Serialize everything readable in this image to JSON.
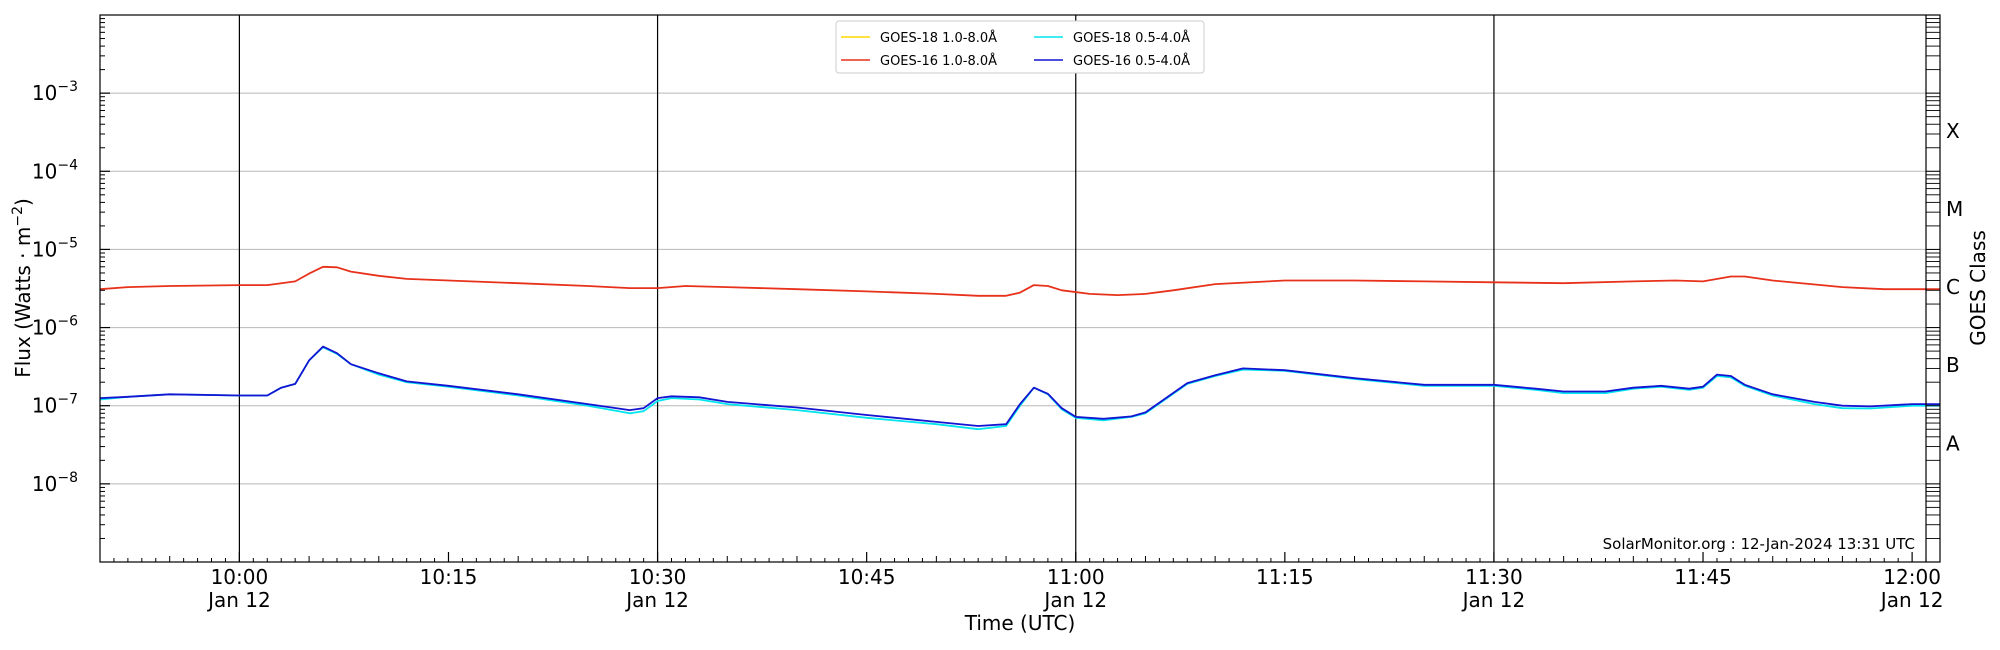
{
  "chart_data": {
    "type": "line",
    "title": "",
    "xlabel": "Time (UTC)",
    "ylabel": "Flux (Watts · m",
    "ylabel_sup": "−2",
    "ylabel_close": ")",
    "y2label": "GOES Class",
    "yscale": "log",
    "xlim": [
      "09:50",
      "12:02"
    ],
    "ylim": [
      1e-09,
      0.01
    ],
    "grid": "horizontal at y decades",
    "legend_position": "top-center",
    "credit": "SolarMonitor.org : 12-Jan-2024 13:31 UTC",
    "x_ticks": [
      {
        "t": "10:00",
        "label": "10:00",
        "sublabel": "Jan 12"
      },
      {
        "t": "10:15",
        "label": "10:15",
        "sublabel": ""
      },
      {
        "t": "10:30",
        "label": "10:30",
        "sublabel": "Jan 12"
      },
      {
        "t": "10:45",
        "label": "10:45",
        "sublabel": ""
      },
      {
        "t": "11:00",
        "label": "11:00",
        "sublabel": "Jan 12"
      },
      {
        "t": "11:15",
        "label": "11:15",
        "sublabel": ""
      },
      {
        "t": "11:30",
        "label": "11:30",
        "sublabel": "Jan 12"
      },
      {
        "t": "11:45",
        "label": "11:45",
        "sublabel": ""
      },
      {
        "t": "12:00",
        "label": "12:00",
        "sublabel": "Jan 12"
      }
    ],
    "vertical_lines": [
      "10:00",
      "10:30",
      "11:00",
      "11:30"
    ],
    "y_ticks": [
      {
        "value": 1e-08,
        "base": "10",
        "exp": "−8"
      },
      {
        "value": 1e-07,
        "base": "10",
        "exp": "−7"
      },
      {
        "value": 1e-06,
        "base": "10",
        "exp": "−6"
      },
      {
        "value": 1e-05,
        "base": "10",
        "exp": "−5"
      },
      {
        "value": 0.0001,
        "base": "10",
        "exp": "−4"
      },
      {
        "value": 0.001,
        "base": "10",
        "exp": "−3"
      }
    ],
    "goes_classes": [
      {
        "label": "A",
        "value": 1e-08
      },
      {
        "label": "B",
        "value": 1e-07
      },
      {
        "label": "C",
        "value": 1e-06
      },
      {
        "label": "M",
        "value": 1e-05
      },
      {
        "label": "X",
        "value": 0.0001
      }
    ],
    "series": [
      {
        "name": "GOES-18 1.0-8.0Å",
        "color": "#ffd700",
        "points": []
      },
      {
        "name": "GOES-16 1.0-8.0Å",
        "color": "#e8311a",
        "points": [
          [
            "09:50",
            3.1e-06
          ],
          [
            "09:52",
            3.3e-06
          ],
          [
            "09:55",
            3.4e-06
          ],
          [
            "10:00",
            3.5e-06
          ],
          [
            "10:02",
            3.5e-06
          ],
          [
            "10:04",
            3.9e-06
          ],
          [
            "10:05",
            4.9e-06
          ],
          [
            "10:06",
            6e-06
          ],
          [
            "10:07",
            5.9e-06
          ],
          [
            "10:08",
            5.2e-06
          ],
          [
            "10:10",
            4.6e-06
          ],
          [
            "10:12",
            4.2e-06
          ],
          [
            "10:15",
            4e-06
          ],
          [
            "10:20",
            3.7e-06
          ],
          [
            "10:25",
            3.4e-06
          ],
          [
            "10:28",
            3.2e-06
          ],
          [
            "10:30",
            3.2e-06
          ],
          [
            "10:32",
            3.4e-06
          ],
          [
            "10:35",
            3.3e-06
          ],
          [
            "10:40",
            3.1e-06
          ],
          [
            "10:45",
            2.9e-06
          ],
          [
            "10:50",
            2.7e-06
          ],
          [
            "10:53",
            2.55e-06
          ],
          [
            "10:55",
            2.55e-06
          ],
          [
            "10:56",
            2.8e-06
          ],
          [
            "10:57",
            3.5e-06
          ],
          [
            "10:58",
            3.4e-06
          ],
          [
            "10:59",
            3e-06
          ],
          [
            "11:01",
            2.7e-06
          ],
          [
            "11:03",
            2.6e-06
          ],
          [
            "11:05",
            2.7e-06
          ],
          [
            "11:07",
            3e-06
          ],
          [
            "11:10",
            3.6e-06
          ],
          [
            "11:15",
            4e-06
          ],
          [
            "11:20",
            4e-06
          ],
          [
            "11:25",
            3.9e-06
          ],
          [
            "11:30",
            3.8e-06
          ],
          [
            "11:35",
            3.7e-06
          ],
          [
            "11:40",
            3.9e-06
          ],
          [
            "11:43",
            4e-06
          ],
          [
            "11:45",
            3.9e-06
          ],
          [
            "11:47",
            4.5e-06
          ],
          [
            "11:48",
            4.5e-06
          ],
          [
            "11:50",
            4e-06
          ],
          [
            "11:55",
            3.3e-06
          ],
          [
            "11:58",
            3.1e-06
          ],
          [
            "12:00",
            3.1e-06
          ],
          [
            "12:02",
            3.1e-06
          ]
        ]
      },
      {
        "name": "GOES-18 0.5-4.0Å",
        "color": "#00e5ee",
        "points": [
          [
            "09:50",
            1.2e-07
          ],
          [
            "09:52",
            1.3e-07
          ],
          [
            "09:55",
            1.4e-07
          ],
          [
            "10:00",
            1.35e-07
          ],
          [
            "10:02",
            1.35e-07
          ],
          [
            "10:03",
            1.7e-07
          ],
          [
            "10:04",
            1.9e-07
          ],
          [
            "10:05",
            3.8e-07
          ],
          [
            "10:06",
            5.6e-07
          ],
          [
            "10:07",
            4.6e-07
          ],
          [
            "10:08",
            3.4e-07
          ],
          [
            "10:10",
            2.5e-07
          ],
          [
            "10:12",
            2e-07
          ],
          [
            "10:15",
            1.75e-07
          ],
          [
            "10:20",
            1.35e-07
          ],
          [
            "10:25",
            1e-07
          ],
          [
            "10:28",
            8e-08
          ],
          [
            "10:29",
            8.5e-08
          ],
          [
            "10:30",
            1.15e-07
          ],
          [
            "10:31",
            1.25e-07
          ],
          [
            "10:33",
            1.2e-07
          ],
          [
            "10:35",
            1.05e-07
          ],
          [
            "10:40",
            8.8e-08
          ],
          [
            "10:45",
            7e-08
          ],
          [
            "10:50",
            5.8e-08
          ],
          [
            "10:53",
            5e-08
          ],
          [
            "10:55",
            5.5e-08
          ],
          [
            "10:56",
            1e-07
          ],
          [
            "10:57",
            1.7e-07
          ],
          [
            "10:58",
            1.4e-07
          ],
          [
            "10:59",
            9e-08
          ],
          [
            "11:00",
            7e-08
          ],
          [
            "11:02",
            6.5e-08
          ],
          [
            "11:04",
            7.2e-08
          ],
          [
            "11:05",
            8e-08
          ],
          [
            "11:08",
            1.9e-07
          ],
          [
            "11:10",
            2.4e-07
          ],
          [
            "11:12",
            2.9e-07
          ],
          [
            "11:15",
            2.8e-07
          ],
          [
            "11:20",
            2.2e-07
          ],
          [
            "11:25",
            1.8e-07
          ],
          [
            "11:30",
            1.8e-07
          ],
          [
            "11:33",
            1.6e-07
          ],
          [
            "11:35",
            1.45e-07
          ],
          [
            "11:38",
            1.45e-07
          ],
          [
            "11:40",
            1.65e-07
          ],
          [
            "11:42",
            1.75e-07
          ],
          [
            "11:44",
            1.6e-07
          ],
          [
            "11:45",
            1.7e-07
          ],
          [
            "11:46",
            2.4e-07
          ],
          [
            "11:47",
            2.3e-07
          ],
          [
            "11:48",
            1.8e-07
          ],
          [
            "11:50",
            1.35e-07
          ],
          [
            "11:53",
            1.05e-07
          ],
          [
            "11:55",
            9.3e-08
          ],
          [
            "11:57",
            9.2e-08
          ],
          [
            "12:00",
            1e-07
          ],
          [
            "12:02",
            1e-07
          ]
        ]
      },
      {
        "name": "GOES-16 0.5-4.0Å",
        "color": "#1414d2",
        "points": [
          [
            "09:50",
            1.25e-07
          ],
          [
            "09:52",
            1.3e-07
          ],
          [
            "09:55",
            1.4e-07
          ],
          [
            "10:00",
            1.35e-07
          ],
          [
            "10:02",
            1.35e-07
          ],
          [
            "10:03",
            1.7e-07
          ],
          [
            "10:04",
            1.9e-07
          ],
          [
            "10:05",
            3.8e-07
          ],
          [
            "10:06",
            5.7e-07
          ],
          [
            "10:07",
            4.7e-07
          ],
          [
            "10:08",
            3.4e-07
          ],
          [
            "10:10",
            2.6e-07
          ],
          [
            "10:12",
            2.05e-07
          ],
          [
            "10:15",
            1.8e-07
          ],
          [
            "10:20",
            1.4e-07
          ],
          [
            "10:25",
            1.05e-07
          ],
          [
            "10:28",
            8.8e-08
          ],
          [
            "10:29",
            9.3e-08
          ],
          [
            "10:30",
            1.25e-07
          ],
          [
            "10:31",
            1.32e-07
          ],
          [
            "10:33",
            1.28e-07
          ],
          [
            "10:35",
            1.12e-07
          ],
          [
            "10:40",
            9.5e-08
          ],
          [
            "10:45",
            7.6e-08
          ],
          [
            "10:50",
            6.2e-08
          ],
          [
            "10:53",
            5.5e-08
          ],
          [
            "10:55",
            5.8e-08
          ],
          [
            "10:56",
            1.05e-07
          ],
          [
            "10:57",
            1.7e-07
          ],
          [
            "10:58",
            1.42e-07
          ],
          [
            "10:59",
            9.3e-08
          ],
          [
            "11:00",
            7.2e-08
          ],
          [
            "11:02",
            6.8e-08
          ],
          [
            "11:04",
            7.3e-08
          ],
          [
            "11:05",
            8.2e-08
          ],
          [
            "11:08",
            1.95e-07
          ],
          [
            "11:10",
            2.45e-07
          ],
          [
            "11:12",
            3e-07
          ],
          [
            "11:15",
            2.85e-07
          ],
          [
            "11:20",
            2.25e-07
          ],
          [
            "11:25",
            1.85e-07
          ],
          [
            "11:30",
            1.85e-07
          ],
          [
            "11:33",
            1.65e-07
          ],
          [
            "11:35",
            1.52e-07
          ],
          [
            "11:38",
            1.52e-07
          ],
          [
            "11:40",
            1.7e-07
          ],
          [
            "11:42",
            1.8e-07
          ],
          [
            "11:44",
            1.65e-07
          ],
          [
            "11:45",
            1.75e-07
          ],
          [
            "11:46",
            2.5e-07
          ],
          [
            "11:47",
            2.4e-07
          ],
          [
            "11:48",
            1.85e-07
          ],
          [
            "11:50",
            1.4e-07
          ],
          [
            "11:53",
            1.12e-07
          ],
          [
            "11:55",
            1e-07
          ],
          [
            "11:57",
            9.8e-08
          ],
          [
            "12:00",
            1.05e-07
          ],
          [
            "12:02",
            1.05e-07
          ]
        ]
      }
    ]
  }
}
